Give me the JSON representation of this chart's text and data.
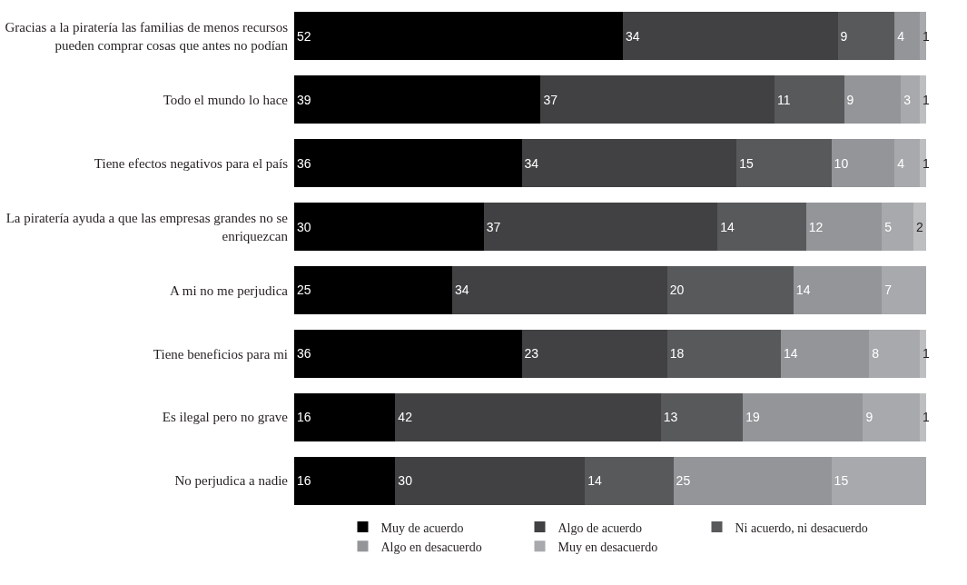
{
  "chart_data": {
    "type": "bar",
    "orientation": "horizontal",
    "stacked": true,
    "data_labels": true,
    "legend": "bottom",
    "tick_labels": "y",
    "xlim": [
      0,
      100
    ],
    "categories": [
      "Gracias a la piratería las familias de menos recursos pueden comprar cosas que antes no podían",
      "Todo el mundo lo hace",
      "Tiene efectos negativos para el país",
      "La piratería ayuda a que las empresas grandes no se enriquezcan",
      "A mi no me perjudica",
      "Tiene beneficios para mi",
      "Es ilegal pero no grave",
      "No perjudica a nadie"
    ],
    "series": [
      {
        "name": "Muy de acuerdo",
        "color": "#000000",
        "values": [
          52,
          39,
          36,
          30,
          25,
          36,
          16,
          16
        ]
      },
      {
        "name": "Algo de acuerdo",
        "color": "#414143",
        "values": [
          34,
          37,
          34,
          37,
          34,
          23,
          42,
          30
        ]
      },
      {
        "name": "Ni acuerdo, ni desacuerdo",
        "color": "#58595b",
        "values": [
          9,
          11,
          15,
          14,
          20,
          18,
          13,
          14
        ]
      },
      {
        "name": "Algo en desacuerdo",
        "color": "#939598",
        "values": [
          4,
          9,
          10,
          12,
          14,
          14,
          19,
          25
        ]
      },
      {
        "name": "Muy en desacuerdo",
        "color": "#a7a9ac",
        "values": [
          1,
          3,
          4,
          5,
          7,
          8,
          9,
          15
        ]
      },
      {
        "color": "#bcbec0",
        "values": [
          null,
          1,
          1,
          2,
          null,
          1,
          1,
          null
        ]
      }
    ]
  }
}
